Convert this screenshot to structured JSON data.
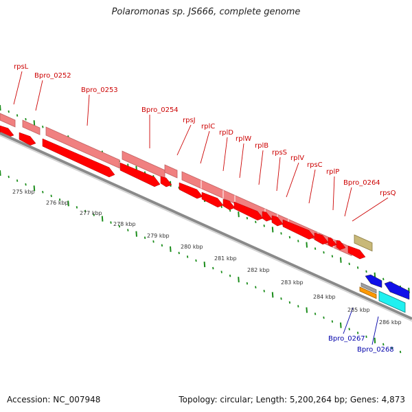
{
  "title": "Polaromonas sp. JS666, complete genome",
  "footer": {
    "accession": "Accession: NC_007948",
    "topology": "Topology: circular; Length: 5,200,264 bp; Genes: 4,873"
  },
  "colors": {
    "red_gene": "#ff0000",
    "pink_cds": "#f08080",
    "olive": "#c8b878",
    "blue": "#1010e8",
    "cyan": "#20f0f0",
    "orange": "#ff9900",
    "grey": "#a0a0a0",
    "ticks": "#1a8c1a",
    "red_label": "#cc0000",
    "blue_label": "#0000aa"
  },
  "kbp_labels": [
    "275 kbp",
    "276 kbp",
    "277 kbp",
    "278 kbp",
    "279 kbp",
    "280 kbp",
    "281 kbp",
    "282 kbp",
    "283 kbp",
    "284 kbp",
    "285 kbp",
    "286 kbp"
  ],
  "gene_labels": [
    {
      "text": "rpsL",
      "strand": "plus"
    },
    {
      "text": "Bpro_0252",
      "strand": "plus"
    },
    {
      "text": "Bpro_0253",
      "strand": "plus"
    },
    {
      "text": "Bpro_0254",
      "strand": "plus"
    },
    {
      "text": "rpsJ",
      "strand": "plus"
    },
    {
      "text": "rplC",
      "strand": "plus"
    },
    {
      "text": "rplD",
      "strand": "plus"
    },
    {
      "text": "rplW",
      "strand": "plus"
    },
    {
      "text": "rplB",
      "strand": "plus"
    },
    {
      "text": "rpsS",
      "strand": "plus"
    },
    {
      "text": "rplV",
      "strand": "plus"
    },
    {
      "text": "rpsC",
      "strand": "plus"
    },
    {
      "text": "rplP",
      "strand": "plus"
    },
    {
      "text": "Bpro_0264",
      "strand": "plus"
    },
    {
      "text": "rpsQ",
      "strand": "plus"
    },
    {
      "text": "Bpro_0267",
      "strand": "minus"
    },
    {
      "text": "Bpro_0268",
      "strand": "minus"
    }
  ]
}
